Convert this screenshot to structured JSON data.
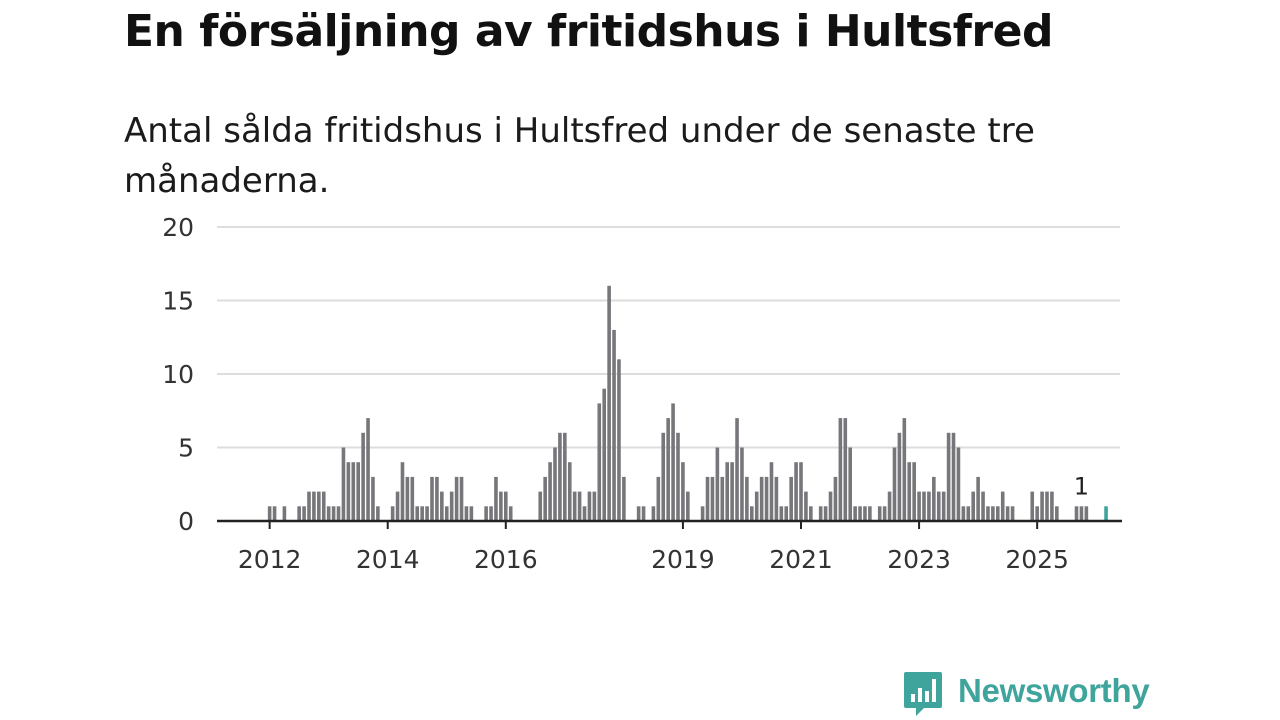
{
  "title": "En försäljning av fritidshus i Hultsfred",
  "subtitle": "Antal sålda fritidshus i Hultsfred under de senaste tre månaderna.",
  "brand": {
    "name": "Newsworthy",
    "color": "#3fa49b",
    "icon": "newsworthy-chart-bubble-icon"
  },
  "colors": {
    "bar": "#77777b",
    "highlight": "#3fa49b",
    "grid": "#dddddd",
    "axis": "#222222"
  },
  "chart_data": {
    "type": "bar",
    "title": "",
    "xlabel": "",
    "ylabel": "",
    "ylim": [
      0,
      20
    ],
    "yticks": [
      0,
      5,
      10,
      15,
      20
    ],
    "x_start": "2011-11",
    "x_ticks": [
      {
        "label": "2012",
        "index": 2
      },
      {
        "label": "2014",
        "index": 26
      },
      {
        "label": "2016",
        "index": 50
      },
      {
        "label": "2019",
        "index": 86
      },
      {
        "label": "2021",
        "index": 110
      },
      {
        "label": "2023",
        "index": 134
      },
      {
        "label": "2025",
        "index": 158
      }
    ],
    "values": [
      0,
      0,
      1,
      1,
      0,
      1,
      0,
      0,
      1,
      1,
      2,
      2,
      2,
      2,
      1,
      1,
      1,
      5,
      4,
      4,
      4,
      6,
      7,
      3,
      1,
      0,
      0,
      1,
      2,
      4,
      3,
      3,
      1,
      1,
      1,
      3,
      3,
      2,
      1,
      2,
      3,
      3,
      1,
      1,
      0,
      0,
      1,
      1,
      3,
      2,
      2,
      1,
      0,
      0,
      0,
      0,
      0,
      2,
      3,
      4,
      5,
      6,
      6,
      4,
      2,
      2,
      1,
      2,
      2,
      8,
      9,
      16,
      13,
      11,
      3,
      0,
      0,
      1,
      1,
      0,
      1,
      3,
      6,
      7,
      8,
      6,
      4,
      2,
      0,
      0,
      1,
      3,
      3,
      5,
      3,
      4,
      4,
      7,
      5,
      3,
      1,
      2,
      3,
      3,
      4,
      3,
      1,
      1,
      3,
      4,
      4,
      2,
      1,
      0,
      1,
      1,
      2,
      3,
      7,
      7,
      5,
      1,
      1,
      1,
      1,
      0,
      1,
      1,
      2,
      5,
      6,
      7,
      4,
      4,
      2,
      2,
      2,
      3,
      2,
      2,
      6,
      6,
      5,
      1,
      1,
      2,
      3,
      2,
      1,
      1,
      1,
      2,
      1,
      1,
      0,
      0,
      0,
      2,
      1,
      2,
      2,
      2,
      1,
      0,
      0,
      0,
      1,
      1,
      1,
      0,
      0,
      0,
      1
    ],
    "highlight_last": true,
    "annotation": {
      "index": 167,
      "label": "1"
    }
  }
}
